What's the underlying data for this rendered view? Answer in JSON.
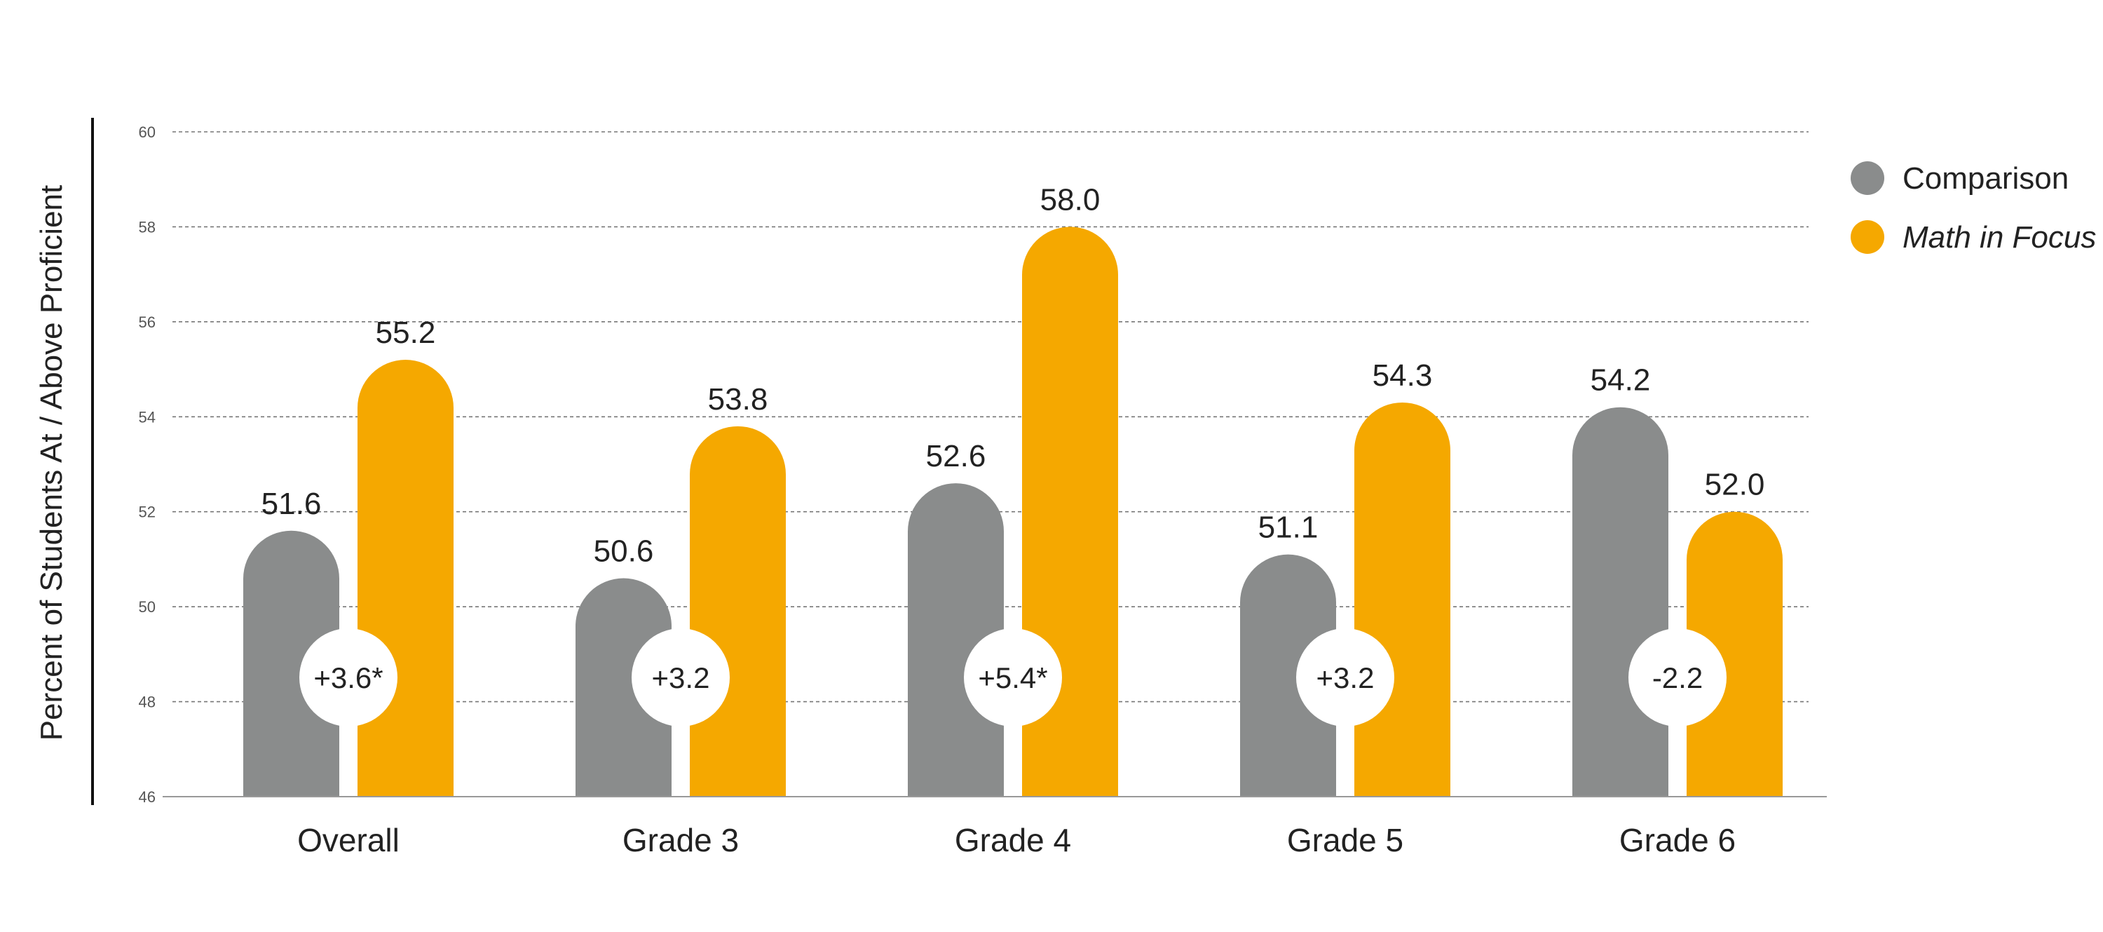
{
  "chart_data": {
    "type": "bar",
    "ylabel": "Percent of Students At / Above Proficient",
    "ylim": [
      46,
      60
    ],
    "yticks": [
      46,
      48,
      50,
      52,
      54,
      56,
      58,
      60
    ],
    "grid": true,
    "legend_position": "right",
    "categories": [
      "Overall",
      "Grade 3",
      "Grade 4",
      "Grade 5",
      "Grade 6"
    ],
    "series": [
      {
        "name": "Comparison",
        "color": "#8a8c8c",
        "italic": false,
        "values": [
          51.6,
          50.6,
          52.6,
          51.1,
          54.2
        ]
      },
      {
        "name": "Math in Focus",
        "color": "#f5a800",
        "italic": true,
        "values": [
          55.2,
          53.8,
          58.0,
          54.3,
          52.0
        ]
      }
    ],
    "value_labels": [
      [
        "51.6",
        "50.6",
        "52.6",
        "51.1",
        "54.2"
      ],
      [
        "55.2",
        "53.8",
        "58.0",
        "54.3",
        "52.0"
      ]
    ],
    "differences": [
      "+3.6*",
      "+3.2",
      "+5.4*",
      "+3.2",
      "-2.2"
    ]
  }
}
